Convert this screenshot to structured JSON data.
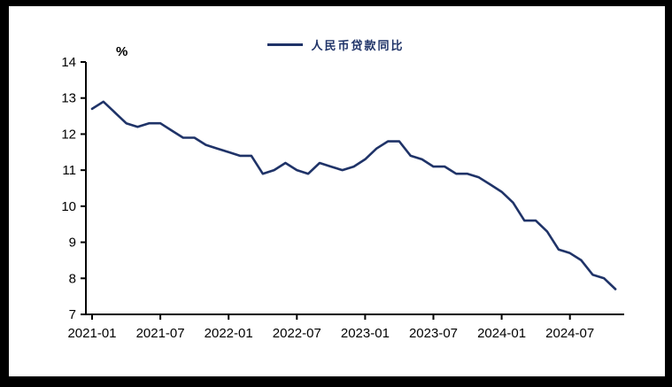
{
  "frame": {
    "background": "#ffffff",
    "border_color": "#000000"
  },
  "legend": {
    "label": "人民币贷款同比",
    "line_color": "#1F3368"
  },
  "y_axis_unit": "%",
  "chart_data": {
    "type": "line",
    "title": "",
    "xlabel": "",
    "ylabel": "%",
    "legend_position": "top-center",
    "grid": false,
    "axis_color": "#000000",
    "ylim": [
      7,
      14
    ],
    "y_ticks": [
      14,
      13,
      12,
      11,
      10,
      9,
      8,
      7
    ],
    "x_ticks": [
      "2021-01",
      "2021-07",
      "2022-01",
      "2022-07",
      "2023-01",
      "2023-07",
      "2024-01",
      "2024-07"
    ],
    "x_tick_month_indices": [
      0,
      6,
      12,
      18,
      24,
      30,
      36,
      42
    ],
    "series": [
      {
        "name": "人民币贷款同比",
        "color": "#1F3368",
        "x": [
          "2021-01",
          "2021-02",
          "2021-03",
          "2021-04",
          "2021-05",
          "2021-06",
          "2021-07",
          "2021-08",
          "2021-09",
          "2021-10",
          "2021-11",
          "2021-12",
          "2022-01",
          "2022-02",
          "2022-03",
          "2022-04",
          "2022-05",
          "2022-06",
          "2022-07",
          "2022-08",
          "2022-09",
          "2022-10",
          "2022-11",
          "2022-12",
          "2023-01",
          "2023-02",
          "2023-03",
          "2023-04",
          "2023-05",
          "2023-06",
          "2023-07",
          "2023-08",
          "2023-09",
          "2023-10",
          "2023-11",
          "2023-12",
          "2024-01",
          "2024-02",
          "2024-03",
          "2024-04",
          "2024-05",
          "2024-06",
          "2024-07",
          "2024-08",
          "2024-09",
          "2024-10",
          "2024-11"
        ],
        "values": [
          12.7,
          12.9,
          12.6,
          12.3,
          12.2,
          12.3,
          12.3,
          12.1,
          11.9,
          11.9,
          11.7,
          11.6,
          11.5,
          11.4,
          11.4,
          10.9,
          11.0,
          11.2,
          11.0,
          10.9,
          11.2,
          11.1,
          11.0,
          11.1,
          11.3,
          11.6,
          11.8,
          11.8,
          11.4,
          11.3,
          11.1,
          11.1,
          10.9,
          10.9,
          10.8,
          10.6,
          10.4,
          10.1,
          9.6,
          9.6,
          9.3,
          8.8,
          8.7,
          8.5,
          8.1,
          8.0,
          7.7
        ]
      }
    ]
  }
}
